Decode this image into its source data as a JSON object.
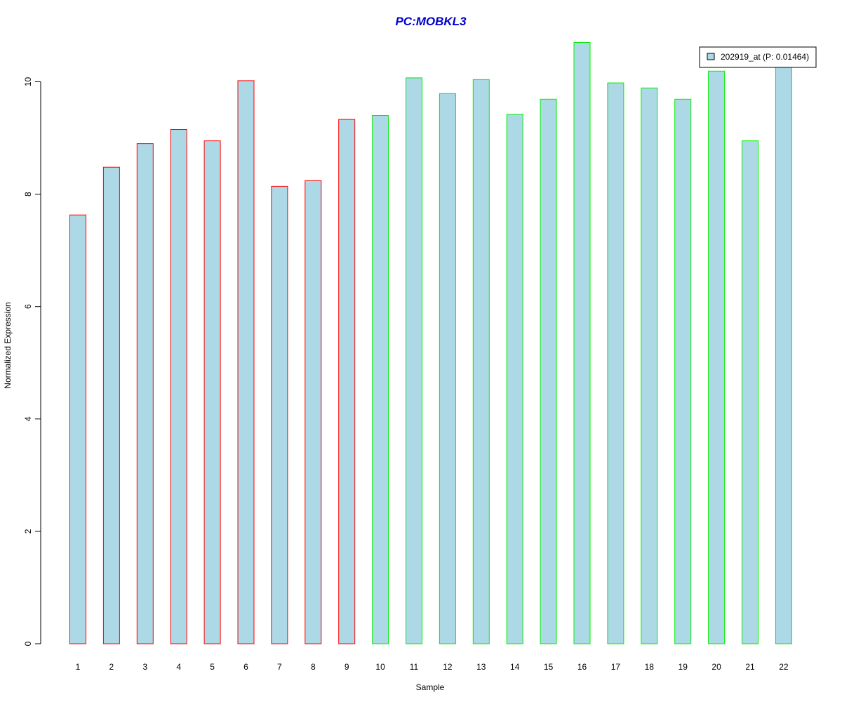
{
  "chart_data": {
    "type": "bar",
    "title": "PC:MOBKL3",
    "xlabel": "Sample",
    "ylabel": "Normalized Expression",
    "categories": [
      "1",
      "2",
      "3",
      "4",
      "5",
      "6",
      "7",
      "8",
      "9",
      "10",
      "11",
      "12",
      "13",
      "14",
      "15",
      "16",
      "17",
      "18",
      "19",
      "20",
      "21",
      "22"
    ],
    "series": [
      {
        "name": "202919_at (P: 0.01464)",
        "values": [
          7.63,
          8.48,
          8.9,
          9.15,
          8.95,
          10.02,
          8.14,
          8.24,
          9.33,
          9.4,
          10.07,
          9.79,
          10.04,
          9.42,
          9.69,
          10.7,
          9.98,
          9.89,
          9.69,
          10.19,
          8.95,
          10.35
        ]
      }
    ],
    "group_colors": [
      "#ff0000",
      "#ff0000",
      "#ff0000",
      "#ff0000",
      "#ff0000",
      "#ff0000",
      "#ff0000",
      "#ff0000",
      "#ff0000",
      "#00ee00",
      "#00ee00",
      "#00ee00",
      "#00ee00",
      "#00ee00",
      "#00ee00",
      "#00ee00",
      "#00ee00",
      "#00ee00",
      "#00ee00",
      "#00ee00",
      "#00ee00",
      "#00ee00"
    ],
    "fill_color": "#add8e6",
    "title_color": "#0000cc",
    "ylim": [
      0,
      10.8
    ],
    "yticks": [
      0,
      2,
      4,
      6,
      8,
      10
    ],
    "grid": false,
    "legend_position": "top-right"
  }
}
